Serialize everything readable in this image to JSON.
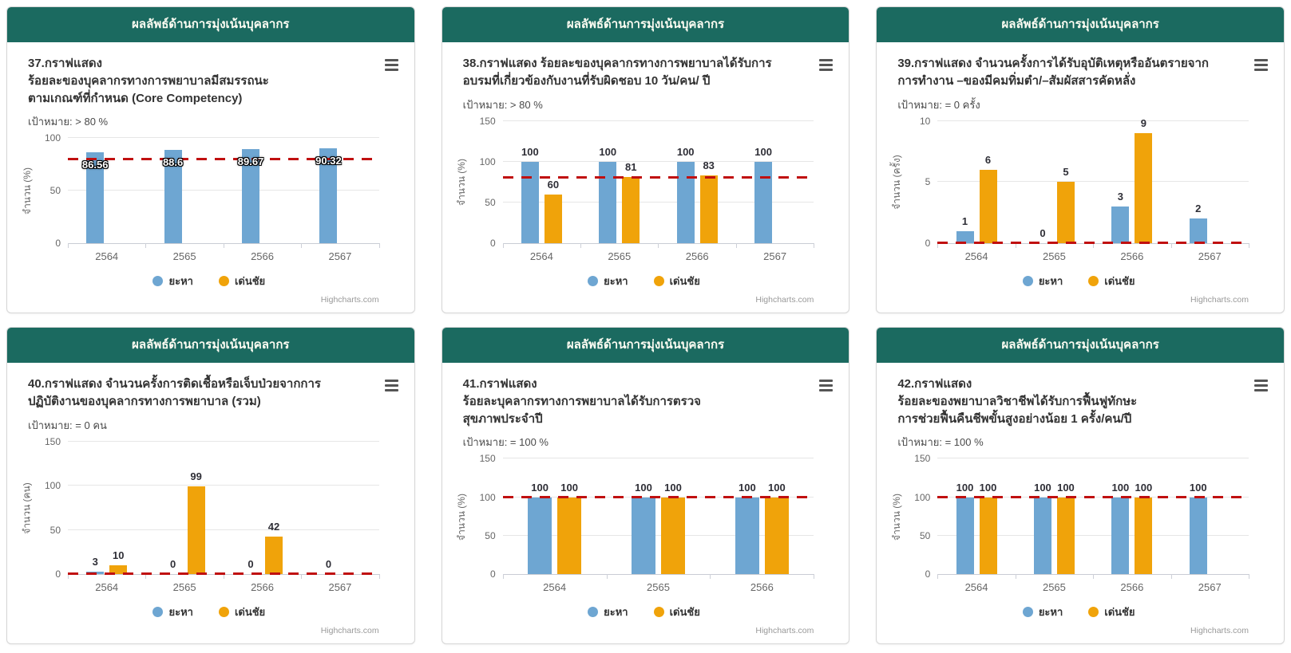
{
  "page_header": "ผลลัพธ์ด้านการมุ่งเน้นบุคลากร",
  "credits_label": "Highcharts.com",
  "legend_series": [
    "ยะหา",
    "เด่นชัย"
  ],
  "colors": {
    "panel_header_bg": "#1b6a60",
    "panel_header_text": "#fcfcf2",
    "series": [
      "#6ea6d2",
      "#f0a30a"
    ],
    "target_line": "#c01010",
    "gridline": "#e6e6e6",
    "axis_line": "#c9ccd4",
    "tick_label": "#666666",
    "title_text": "#333333",
    "credits_text": "#999999"
  },
  "chart_data": [
    {
      "type": "bar",
      "panel_header": "ผลลัพธ์ด้านการมุ่งเน้นบุคลากร",
      "title_lines": [
        "37.กราฟแสดง",
        "ร้อยละของบุคลากรทางการพยาบาลมีสมรรถนะ",
        "ตามเกณฑ์ที่กำหนด (Core Competency)"
      ],
      "subtitle": "เป้าหมาย: > 80 %",
      "ylabel": "จำนวน (%)",
      "ylim": [
        0,
        100
      ],
      "yticks": [
        0,
        50,
        100
      ],
      "target_value": 80,
      "categories": [
        "2564",
        "2565",
        "2566",
        "2567"
      ],
      "series": [
        {
          "name": "ยะหา",
          "values": [
            86.56,
            88.6,
            89.67,
            90.32
          ]
        },
        {
          "name": "เด่นชัย",
          "values": [
            null,
            null,
            null,
            null
          ]
        }
      ],
      "data_labels_inside": true,
      "legend_position": "bottom",
      "grid": true
    },
    {
      "type": "bar",
      "panel_header": "ผลลัพธ์ด้านการมุ่งเน้นบุคลากร",
      "title_lines": [
        "38.กราฟแสดง ร้อยละของบุคลากรทางการพยาบาลได้รับการ",
        "อบรมที่เกี่ยวข้องกับงานที่รับผิดชอบ 10 วัน/คน/ ปี"
      ],
      "subtitle": "เป้าหมาย: > 80 %",
      "ylabel": "จำนวน (%)",
      "ylim": [
        0,
        150
      ],
      "yticks": [
        0,
        50,
        100,
        150
      ],
      "target_value": 80,
      "categories": [
        "2564",
        "2565",
        "2566",
        "2567"
      ],
      "series": [
        {
          "name": "ยะหา",
          "values": [
            100,
            100,
            100,
            100
          ]
        },
        {
          "name": "เด่นชัย",
          "values": [
            60,
            81,
            83,
            null
          ]
        }
      ],
      "data_labels_inside": false,
      "legend_position": "bottom",
      "grid": true
    },
    {
      "type": "bar",
      "panel_header": "ผลลัพธ์ด้านการมุ่งเน้นบุคลากร",
      "title_lines": [
        "39.กราฟแสดง จำนวนครั้งการได้รับอุบัติเหตุหรืออันตรายจาก",
        "การทำงาน –ของมีคมทิ่มตำ/–สัมผัสสารคัดหลั่ง"
      ],
      "subtitle": "เป้าหมาย: = 0 ครั้ง",
      "ylabel": "จำนวน (ครั้ง)",
      "ylim": [
        0,
        10
      ],
      "yticks": [
        0,
        5,
        10
      ],
      "target_value": 0,
      "categories": [
        "2564",
        "2565",
        "2566",
        "2567"
      ],
      "series": [
        {
          "name": "ยะหา",
          "values": [
            1,
            0,
            3,
            2
          ]
        },
        {
          "name": "เด่นชัย",
          "values": [
            6,
            5,
            9,
            null
          ]
        }
      ],
      "data_labels_inside": false,
      "legend_position": "bottom",
      "grid": true
    },
    {
      "type": "bar",
      "panel_header": "ผลลัพธ์ด้านการมุ่งเน้นบุคลากร",
      "title_lines": [
        "40.กราฟแสดง จำนวนครั้งการติดเชื้อหรือเจ็บป่วยจากการ",
        "ปฏิบัติงานของบุคลากรทางการพยาบาล (รวม)"
      ],
      "subtitle": "เป้าหมาย: = 0 คน",
      "ylabel": "จำนวน (คน)",
      "ylim": [
        0,
        150
      ],
      "yticks": [
        0,
        50,
        100,
        150
      ],
      "target_value": 0,
      "categories": [
        "2564",
        "2565",
        "2566",
        "2567"
      ],
      "series": [
        {
          "name": "ยะหา",
          "values": [
            3,
            0,
            0,
            0
          ]
        },
        {
          "name": "เด่นชัย",
          "values": [
            10,
            99,
            42,
            null
          ]
        }
      ],
      "data_labels_inside": false,
      "legend_position": "bottom",
      "grid": true
    },
    {
      "type": "bar",
      "panel_header": "ผลลัพธ์ด้านการมุ่งเน้นบุคลากร",
      "title_lines": [
        "41.กราฟแสดง",
        "ร้อยละบุคลากรทางการพยาบาลได้รับการตรวจ",
        "สุขภาพประจำปี"
      ],
      "subtitle": "เป้าหมาย: = 100 %",
      "ylabel": "จำนวน (%)",
      "ylim": [
        0,
        150
      ],
      "yticks": [
        0,
        50,
        100,
        150
      ],
      "target_value": 100,
      "categories": [
        "2564",
        "2565",
        "2566"
      ],
      "series": [
        {
          "name": "ยะหา",
          "values": [
            100,
            100,
            100
          ]
        },
        {
          "name": "เด่นชัย",
          "values": [
            100,
            100,
            100
          ]
        }
      ],
      "data_labels_inside": false,
      "legend_position": "bottom",
      "grid": true
    },
    {
      "type": "bar",
      "panel_header": "ผลลัพธ์ด้านการมุ่งเน้นบุคลากร",
      "title_lines": [
        "42.กราฟแสดง",
        "ร้อยละของพยาบาลวิชาชีพได้รับการฟื้นฟูทักษะ",
        "การช่วยฟื้นคืนชีพขั้นสูงอย่างน้อย 1 ครั้ง/คน/ปี"
      ],
      "subtitle": "เป้าหมาย: = 100 %",
      "ylabel": "จำนวน (%)",
      "ylim": [
        0,
        150
      ],
      "yticks": [
        0,
        50,
        100,
        150
      ],
      "target_value": 100,
      "categories": [
        "2564",
        "2565",
        "2566",
        "2567"
      ],
      "series": [
        {
          "name": "ยะหา",
          "values": [
            100,
            100,
            100,
            100
          ]
        },
        {
          "name": "เด่นชัย",
          "values": [
            100,
            100,
            100,
            null
          ]
        }
      ],
      "data_labels_inside": false,
      "legend_position": "bottom",
      "grid": true
    }
  ]
}
